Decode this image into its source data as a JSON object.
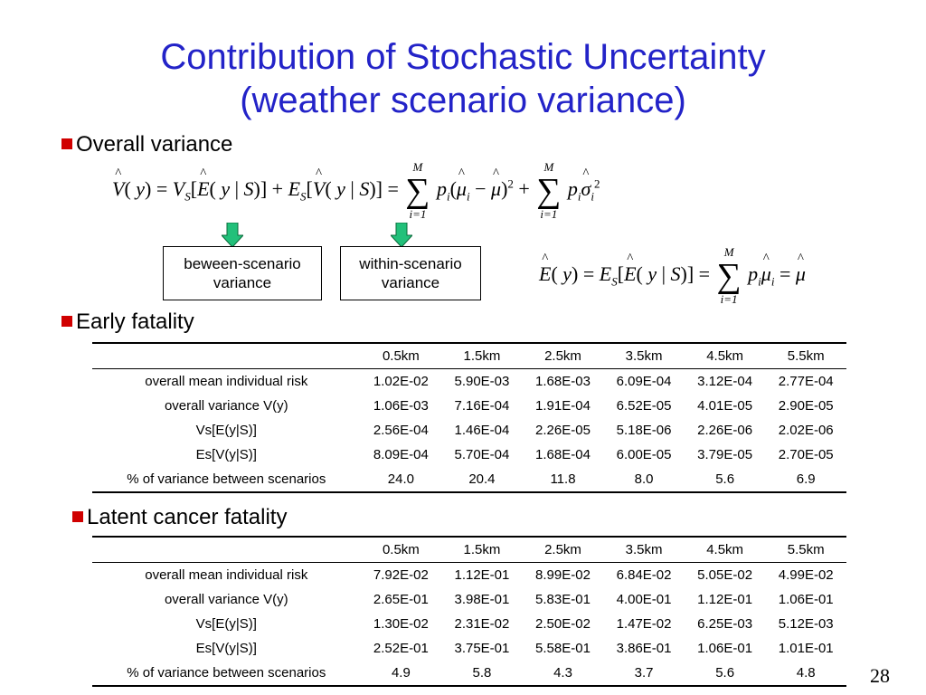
{
  "title": {
    "line1": "Contribution of Stochastic Uncertainty",
    "line2": "(weather scenario variance)"
  },
  "bullets": {
    "overall_variance": "Overall variance",
    "early_fatality": "Early fatality",
    "latent_cancer": "Latent cancer fatality"
  },
  "boxes": {
    "between": "beween-scenario variance",
    "within": "within-scenario variance"
  },
  "colors": {
    "title": "#2323c8",
    "bullet": "#d00000",
    "arrow": "#22c07a"
  },
  "tables": {
    "early": {
      "columns": [
        "",
        "0.5km",
        "1.5km",
        "2.5km",
        "3.5km",
        "4.5km",
        "5.5km"
      ],
      "rows": [
        [
          "overall mean individual risk",
          "1.02E-02",
          "5.90E-03",
          "1.68E-03",
          "6.09E-04",
          "3.12E-04",
          "2.77E-04"
        ],
        [
          "overall variance V(y)",
          "1.06E-03",
          "7.16E-04",
          "1.91E-04",
          "6.52E-05",
          "4.01E-05",
          "2.90E-05"
        ],
        [
          "Vs[E(y|S)]",
          "2.56E-04",
          "1.46E-04",
          "2.26E-05",
          "5.18E-06",
          "2.26E-06",
          "2.02E-06"
        ],
        [
          "Es[V(y|S)]",
          "8.09E-04",
          "5.70E-04",
          "1.68E-04",
          "6.00E-05",
          "3.79E-05",
          "2.70E-05"
        ],
        [
          "% of variance between scenarios",
          "24.0",
          "20.4",
          "11.8",
          "8.0",
          "5.6",
          "6.9"
        ]
      ]
    },
    "latent": {
      "columns": [
        "",
        "0.5km",
        "1.5km",
        "2.5km",
        "3.5km",
        "4.5km",
        "5.5km"
      ],
      "rows": [
        [
          "overall mean individual risk",
          "7.92E-02",
          "1.12E-01",
          "8.99E-02",
          "6.84E-02",
          "5.05E-02",
          "4.99E-02"
        ],
        [
          "overall variance V(y)",
          "2.65E-01",
          "3.98E-01",
          "5.83E-01",
          "4.00E-01",
          "1.12E-01",
          "1.06E-01"
        ],
        [
          "Vs[E(y|S)]",
          "1.30E-02",
          "2.31E-02",
          "2.50E-02",
          "1.47E-02",
          "6.25E-03",
          "5.12E-03"
        ],
        [
          "Es[V(y|S)]",
          "2.52E-01",
          "3.75E-01",
          "5.58E-01",
          "3.86E-01",
          "1.06E-01",
          "1.01E-01"
        ],
        [
          "% of variance between scenarios",
          "4.9",
          "5.8",
          "4.3",
          "3.7",
          "5.6",
          "4.8"
        ]
      ]
    }
  },
  "page_number": "28"
}
